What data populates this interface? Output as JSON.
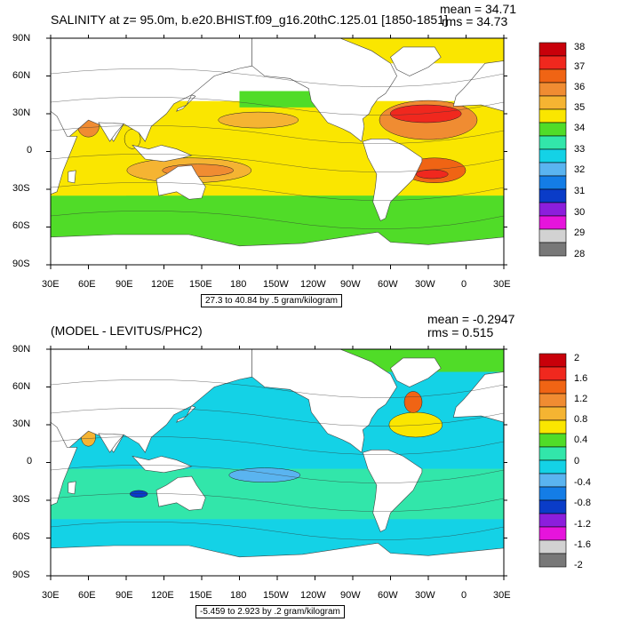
{
  "panels": [
    {
      "title": "SALINITY at z=  95.0m, b.e20.BHIST.f09_g16.20thC.125.01 [1850-1851]",
      "mean_label": "mean = 34.71",
      "rms_label": "rms = 34.73",
      "range_label": "27.3 to 40.84 by .5 gram/kilogram",
      "colorbar": {
        "labels": [
          "38",
          "37",
          "36",
          "35",
          "34",
          "33",
          "32",
          "31",
          "30",
          "29",
          "28"
        ],
        "colors": [
          "#c8000a",
          "#f0281e",
          "#f06414",
          "#f08c32",
          "#f5b432",
          "#fae600",
          "#50dc28",
          "#32e6aa",
          "#14d2e6",
          "#5ab4f0",
          "#147de6",
          "#0a3cc8",
          "#8c1edc",
          "#e614dc",
          "#d2d2d2",
          "#787878"
        ]
      }
    },
    {
      "title": "(MODEL - LEVITUS/PHC2)",
      "mean_label": "mean = -0.2947",
      "rms_label": "rms = 0.515",
      "range_label": "-5.459 to 2.923 by .2 gram/kilogram",
      "colorbar": {
        "labels": [
          "2",
          "1.6",
          "1.2",
          "0.8",
          "0.4",
          "0",
          "-0.4",
          "-0.8",
          "-1.2",
          "-1.6",
          "-2"
        ],
        "colors": [
          "#c8000a",
          "#f0281e",
          "#f06414",
          "#f08c32",
          "#f5b432",
          "#fae600",
          "#50dc28",
          "#32e6aa",
          "#14d2e6",
          "#5ab4f0",
          "#147de6",
          "#0a3cc8",
          "#8c1edc",
          "#e614dc",
          "#d2d2d2",
          "#787878"
        ]
      }
    }
  ],
  "axes": {
    "lat_labels": [
      "90N",
      "60N",
      "30N",
      "0",
      "30S",
      "60S",
      "90S"
    ],
    "lon_labels": [
      "30E",
      "60E",
      "90E",
      "120E",
      "150E",
      "180",
      "150W",
      "120W",
      "90W",
      "60W",
      "30W",
      "0",
      "30E"
    ]
  }
}
